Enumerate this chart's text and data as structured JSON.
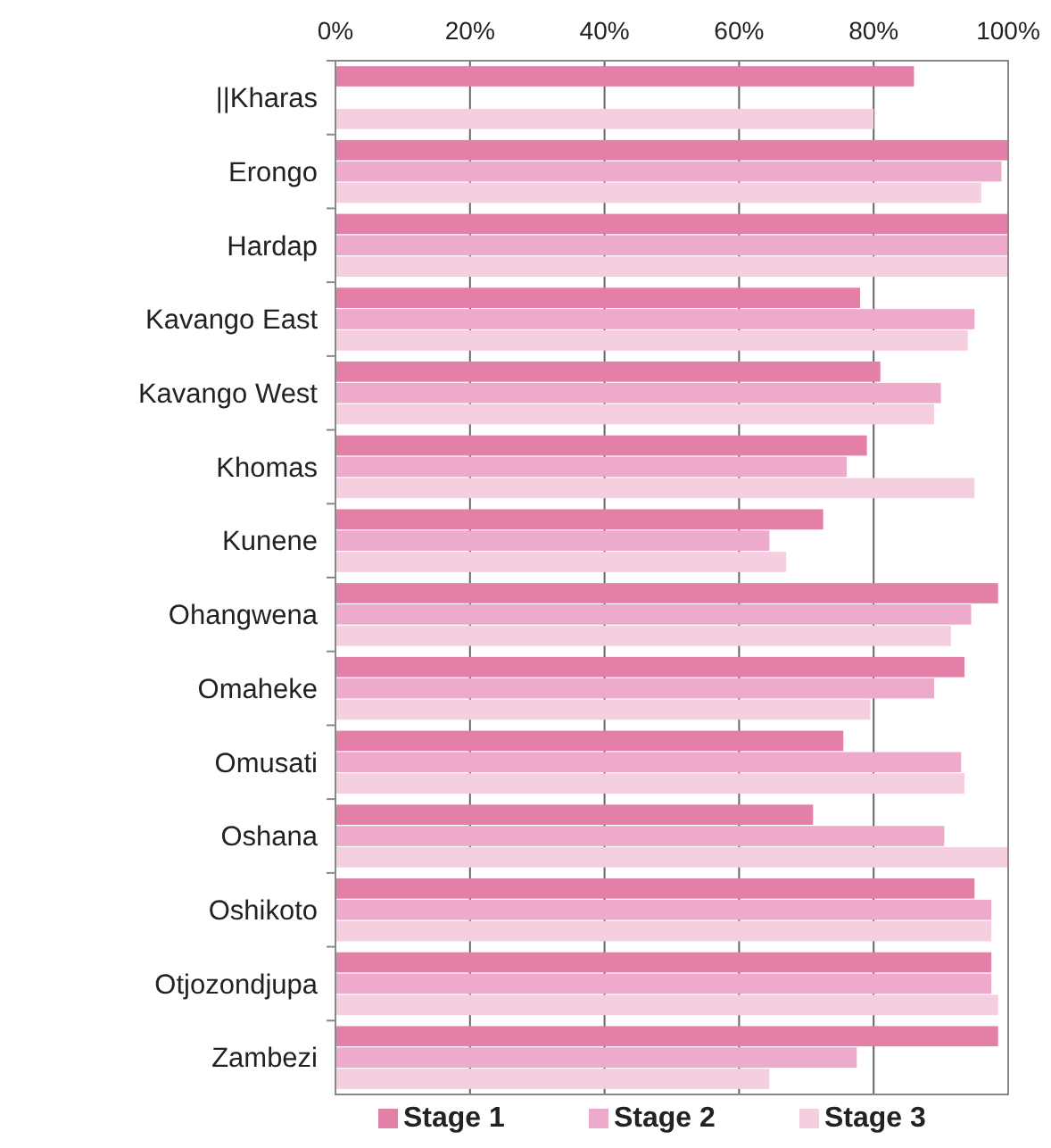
{
  "chart_data": {
    "type": "bar",
    "orientation": "horizontal",
    "categories": [
      "||Kharas",
      "Erongo",
      "Hardap",
      "Kavango East",
      "Kavango West",
      "Khomas",
      "Kunene",
      "Ohangwena",
      "Omaheke",
      "Omusati",
      "Oshana",
      "Oshikoto",
      "Otjozondjupa",
      "Zambezi"
    ],
    "series": [
      {
        "name": "Stage 1",
        "color": "#e47fa8",
        "values": [
          86,
          100,
          100,
          78,
          81,
          79,
          72.5,
          98.5,
          93.5,
          75.5,
          71,
          95,
          97.5,
          98.5
        ]
      },
      {
        "name": "Stage 2",
        "color": "#eeaacb",
        "values": [
          null,
          99,
          100,
          95,
          90,
          76,
          64.5,
          94.5,
          89,
          93,
          90.5,
          97.5,
          97.5,
          77.5
        ]
      },
      {
        "name": "Stage 3",
        "color": "#f5cfe0",
        "values": [
          80,
          96,
          100,
          94,
          89,
          95,
          67,
          91.5,
          79.5,
          93.5,
          100,
          97.5,
          98.5,
          64.5
        ]
      }
    ],
    "xlim": [
      0,
      100
    ],
    "xticks": [
      {
        "value": 0,
        "label": "0%"
      },
      {
        "value": 20,
        "label": "20%"
      },
      {
        "value": 40,
        "label": "40%"
      },
      {
        "value": 60,
        "label": "60%"
      },
      {
        "value": 80,
        "label": "80%"
      },
      {
        "value": 100,
        "label": "100%"
      }
    ],
    "grid": "x",
    "legend": "bottom"
  }
}
